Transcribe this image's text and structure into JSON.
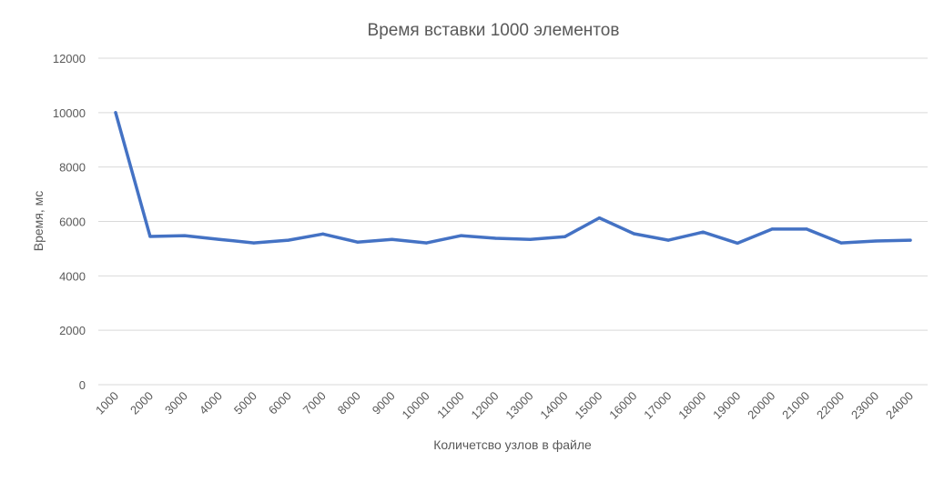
{
  "chart_data": {
    "type": "line",
    "title": "Время вставки 1000 элементов",
    "xlabel": "Количетсво узлов в файле",
    "ylabel": "Время, мс",
    "ylim": [
      0,
      12000
    ],
    "yticks": [
      0,
      2000,
      4000,
      6000,
      8000,
      10000,
      12000
    ],
    "grid": true,
    "legend": "none",
    "line_color": "#4472C4",
    "categories": [
      "1000",
      "2000",
      "3000",
      "4000",
      "5000",
      "6000",
      "7000",
      "8000",
      "9000",
      "10000",
      "11000",
      "12000",
      "13000",
      "14000",
      "15000",
      "16000",
      "17000",
      "18000",
      "19000",
      "20000",
      "21000",
      "22000",
      "23000",
      "24000"
    ],
    "series": [
      {
        "values": [
          10000,
          5450,
          5480,
          5340,
          5210,
          5310,
          5540,
          5240,
          5340,
          5210,
          5480,
          5380,
          5340,
          5440,
          6130,
          5550,
          5310,
          5610,
          5200,
          5720,
          5720,
          5210,
          5280,
          5310
        ]
      }
    ]
  }
}
